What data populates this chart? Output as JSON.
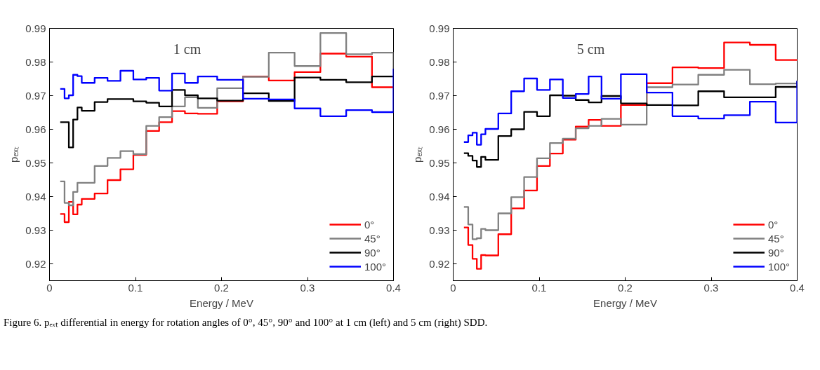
{
  "chart_data": [
    {
      "type": "step",
      "annotations": [
        "1 cm",
        "Figure 6. pₑₓₜ differential in energy for rotation angles of 0°, 45°, 90° and 100° at 1 cm (left) and 5 cm (right) SDD."
      ],
      "xlabel": "Energy / MeV",
      "ylabel": "pₑₓₜ",
      "x": [
        0.0125,
        0.0175,
        0.0225,
        0.0275,
        0.0325,
        0.0375,
        0.0525,
        0.0675,
        0.0825,
        0.0975,
        0.1125,
        0.1275,
        0.1425,
        0.1575,
        0.1725,
        0.195,
        0.225,
        0.255,
        0.285,
        0.315,
        0.345,
        0.375,
        0.4
      ],
      "xlim": [
        0,
        0.4
      ],
      "xticks": [
        0,
        0.1,
        0.2,
        0.3,
        0.4
      ],
      "ylim": [
        0.915,
        0.99
      ],
      "yticks": [
        0.92,
        0.93,
        0.94,
        0.95,
        0.96,
        0.97,
        0.98,
        0.99
      ],
      "legend": "bottom right",
      "grid": false,
      "line_style": "solid",
      "series": [
        {
          "name": "0°",
          "color": "#ff0000",
          "values": [
            0.9348,
            0.9324,
            0.9384,
            0.9347,
            0.9376,
            0.9393,
            0.9409,
            0.9449,
            0.9481,
            0.9524,
            0.9595,
            0.9621,
            0.9654,
            0.9647,
            0.9646,
            0.9683,
            0.9757,
            0.9745,
            0.977,
            0.9825,
            0.9816,
            0.9725,
            0.9725
          ]
        },
        {
          "name": "45°",
          "color": "#808080",
          "values": [
            0.9445,
            0.9381,
            0.9374,
            0.9414,
            0.9441,
            0.9441,
            0.9491,
            0.9515,
            0.9535,
            0.9526,
            0.961,
            0.9636,
            0.9668,
            0.9695,
            0.9664,
            0.9722,
            0.9756,
            0.9828,
            0.9788,
            0.9886,
            0.9823,
            0.9828,
            0.978
          ]
        },
        {
          "name": "90°",
          "color": "#000000",
          "values": [
            0.9621,
            0.9621,
            0.9546,
            0.9629,
            0.9665,
            0.9655,
            0.9681,
            0.969,
            0.969,
            0.9683,
            0.9679,
            0.9668,
            0.9717,
            0.9701,
            0.9692,
            0.9685,
            0.9707,
            0.9684,
            0.9754,
            0.9747,
            0.974,
            0.9757,
            0.9757
          ]
        },
        {
          "name": "100°",
          "color": "#0000ff",
          "values": [
            0.972,
            0.9692,
            0.9701,
            0.9762,
            0.9758,
            0.9738,
            0.9753,
            0.9744,
            0.9774,
            0.9748,
            0.9753,
            0.9715,
            0.9766,
            0.9738,
            0.9757,
            0.9747,
            0.9691,
            0.9689,
            0.9662,
            0.9639,
            0.9657,
            0.9651,
            0.978
          ]
        }
      ]
    },
    {
      "type": "step",
      "annotations": [
        "5 cm"
      ],
      "xlabel": "Energy / MeV",
      "ylabel": "pₑₓₜ",
      "x": [
        0.0125,
        0.0175,
        0.0225,
        0.0275,
        0.0325,
        0.0375,
        0.0525,
        0.0675,
        0.0825,
        0.0975,
        0.1125,
        0.1275,
        0.1425,
        0.1575,
        0.1725,
        0.195,
        0.225,
        0.255,
        0.285,
        0.315,
        0.345,
        0.375,
        0.4
      ],
      "xlim": [
        0,
        0.4
      ],
      "xticks": [
        0,
        0.1,
        0.2,
        0.3,
        0.4
      ],
      "ylim": [
        0.915,
        0.99
      ],
      "yticks": [
        0.92,
        0.93,
        0.94,
        0.95,
        0.96,
        0.97,
        0.98,
        0.99
      ],
      "legend": "bottom right",
      "grid": false,
      "line_style": "solid",
      "series": [
        {
          "name": "0°",
          "color": "#ff0000",
          "values": [
            0.9308,
            0.9256,
            0.9215,
            0.9185,
            0.9226,
            0.9225,
            0.9288,
            0.9365,
            0.9418,
            0.9491,
            0.9528,
            0.9569,
            0.9608,
            0.9628,
            0.961,
            0.9672,
            0.9737,
            0.9784,
            0.9782,
            0.9858,
            0.9851,
            0.9806,
            0.9808
          ]
        },
        {
          "name": "45°",
          "color": "#808080",
          "values": [
            0.9369,
            0.9317,
            0.9273,
            0.9276,
            0.9304,
            0.93,
            0.935,
            0.9398,
            0.9458,
            0.9514,
            0.9559,
            0.9572,
            0.9603,
            0.961,
            0.9631,
            0.9614,
            0.9725,
            0.9733,
            0.9762,
            0.9777,
            0.9734,
            0.9736,
            0.9744
          ]
        },
        {
          "name": "90°",
          "color": "#000000",
          "values": [
            0.9529,
            0.9521,
            0.9507,
            0.9488,
            0.9518,
            0.9509,
            0.958,
            0.96,
            0.9652,
            0.9639,
            0.9701,
            0.97,
            0.9687,
            0.968,
            0.9699,
            0.9677,
            0.9672,
            0.9671,
            0.9713,
            0.9695,
            0.9695,
            0.9726,
            0.9744
          ]
        },
        {
          "name": "100°",
          "color": "#0000ff",
          "values": [
            0.9562,
            0.9582,
            0.959,
            0.9554,
            0.9585,
            0.9601,
            0.9647,
            0.9713,
            0.9751,
            0.9717,
            0.9748,
            0.9693,
            0.9705,
            0.9757,
            0.9691,
            0.9764,
            0.9709,
            0.9639,
            0.9632,
            0.9642,
            0.9682,
            0.962,
            0.9744
          ]
        }
      ]
    }
  ]
}
